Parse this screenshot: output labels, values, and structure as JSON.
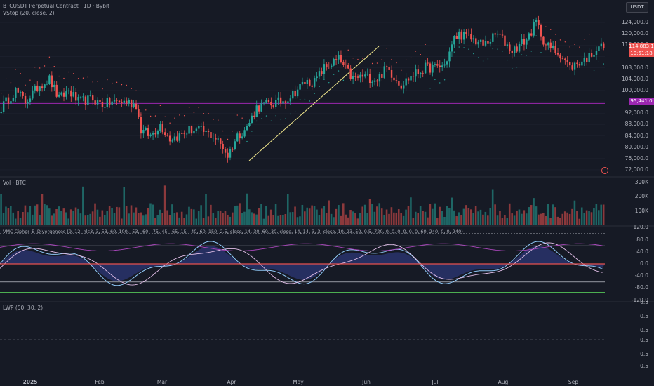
{
  "header": {
    "symbol": "BTCUSDT Perpetual Contract · 1D · Bybit",
    "vstop": "VStop (20, close, 2)",
    "vol": "Vol · BTC",
    "vmc": "VMC Cipher_B_Divergences (9, 12, hlc3, 3, 53, 60, 100, -53, -60, -75, 45, -65, 15, -40, 60, 150, 2.5, close, 14, 30, 60, 30, close, 14, 14, 3, 3, close, 10, 23, 50, 0.5, 720, 0, 0, 0, 0, 0, 0, 60, 240, 0, 0, 240)",
    "lwp": "LWP (50, 30, 2)"
  },
  "currency_button": "USDT",
  "price_axis": [
    "124,000.0",
    "120,000.0",
    "116,000.0",
    "108,000.0",
    "104,000.0",
    "100,000.0",
    "92,000.0",
    "88,000.0",
    "84,000.0",
    "80,000.0",
    "76,000.0",
    "72,000.0"
  ],
  "price_tags": {
    "last": "114,883.1",
    "countdown": "10:51:18",
    "level": "95,441.0"
  },
  "vol_axis": [
    "300K",
    "200K",
    "100K"
  ],
  "osc_axis": [
    "120.0",
    "80.0",
    "40.0",
    "0.0",
    "-40.0",
    "-80.0",
    "-120.0"
  ],
  "lwp_axis": [
    "0.5",
    "0.5",
    "0.5",
    "0.5",
    "0.5",
    "0.5"
  ],
  "x_axis": [
    "2025",
    "Feb",
    "Mar",
    "Apr",
    "May",
    "Jun",
    "Jul",
    "Aug",
    "Sep"
  ],
  "colors": {
    "bg": "#161a25",
    "up": "#26a69a",
    "down": "#ef5350",
    "vstop": "#ef5350",
    "vstop_up": "#26a69a",
    "grid": "#1f2330",
    "hline": "#9c27b0",
    "trend": "#f0e68c"
  },
  "chart_data": {
    "type": "candlestick",
    "title": "BTCUSDT Perpetual Contract · 1D · Bybit",
    "x": [
      "2025-01",
      "2025-02",
      "2025-03",
      "2025-04",
      "2025-05",
      "2025-06",
      "2025-07",
      "2025-08",
      "2025-09"
    ],
    "ylim": [
      70000,
      127000
    ],
    "hline": 95441,
    "last_price": 114883.1,
    "close_anchors": [
      [
        0,
        94000
      ],
      [
        6,
        100000
      ],
      [
        10,
        96000
      ],
      [
        16,
        102000
      ],
      [
        20,
        104000
      ],
      [
        24,
        97000
      ],
      [
        28,
        100000
      ],
      [
        32,
        96000
      ],
      [
        38,
        97000
      ],
      [
        42,
        95000
      ],
      [
        46,
        96000
      ],
      [
        52,
        96000
      ],
      [
        56,
        95000
      ],
      [
        58,
        86000
      ],
      [
        62,
        84000
      ],
      [
        66,
        88000
      ],
      [
        70,
        83000
      ],
      [
        74,
        84000
      ],
      [
        78,
        86000
      ],
      [
        82,
        86000
      ],
      [
        88,
        84000
      ],
      [
        92,
        80000
      ],
      [
        94,
        77000
      ],
      [
        98,
        84000
      ],
      [
        102,
        87000
      ],
      [
        106,
        94000
      ],
      [
        110,
        95000
      ],
      [
        116,
        96000
      ],
      [
        120,
        98000
      ],
      [
        126,
        103000
      ],
      [
        130,
        103000
      ],
      [
        134,
        108000
      ],
      [
        140,
        111000
      ],
      [
        146,
        104000
      ],
      [
        150,
        105000
      ],
      [
        156,
        104000
      ],
      [
        160,
        108000
      ],
      [
        164,
        104000
      ],
      [
        166,
        102000
      ],
      [
        170,
        105000
      ],
      [
        176,
        108000
      ],
      [
        180,
        108000
      ],
      [
        184,
        109000
      ],
      [
        188,
        118000
      ],
      [
        190,
        120000
      ],
      [
        196,
        118000
      ],
      [
        200,
        116000
      ],
      [
        206,
        120000
      ],
      [
        212,
        114000
      ],
      [
        218,
        118000
      ],
      [
        222,
        124000
      ],
      [
        226,
        116000
      ],
      [
        232,
        113000
      ],
      [
        236,
        108000
      ],
      [
        240,
        110000
      ],
      [
        244,
        112000
      ],
      [
        248,
        116000
      ],
      [
        250,
        114883
      ]
    ],
    "volume_k_range": [
      20,
      300
    ],
    "oscillator_range": [
      -120,
      120
    ]
  }
}
